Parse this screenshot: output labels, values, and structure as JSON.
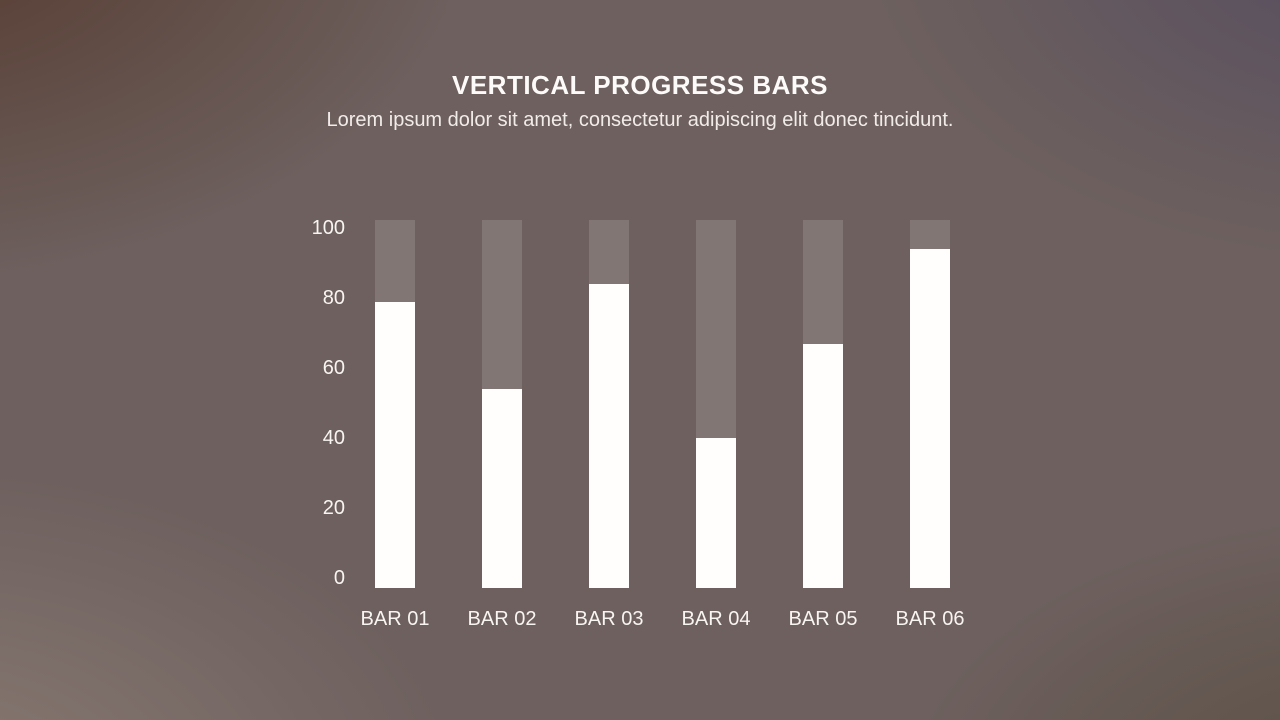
{
  "header": {
    "title": "VERTICAL PROGRESS BARS",
    "subtitle": "Lorem ipsum dolor sit amet, consectetur adipiscing elit donec tincidunt."
  },
  "chart_data": {
    "type": "bar",
    "title": "VERTICAL PROGRESS BARS",
    "categories": [
      "BAR 01",
      "BAR 02",
      "BAR 03",
      "BAR 04",
      "BAR 05",
      "BAR 06"
    ],
    "values": [
      79,
      54,
      84,
      40,
      67,
      94
    ],
    "xlabel": "",
    "ylabel": "",
    "ylim": [
      0,
      100
    ],
    "yticks": [
      0,
      20,
      40,
      60,
      80,
      100
    ],
    "grid": false,
    "legend": "none",
    "colors": {
      "bar_fill": "#fffefd",
      "bar_track": "rgba(255,255,255,0.14)",
      "axis_text": "#f8f4f1",
      "title_text": "#fdfbf9",
      "subtitle_text": "#f2ece9"
    }
  }
}
